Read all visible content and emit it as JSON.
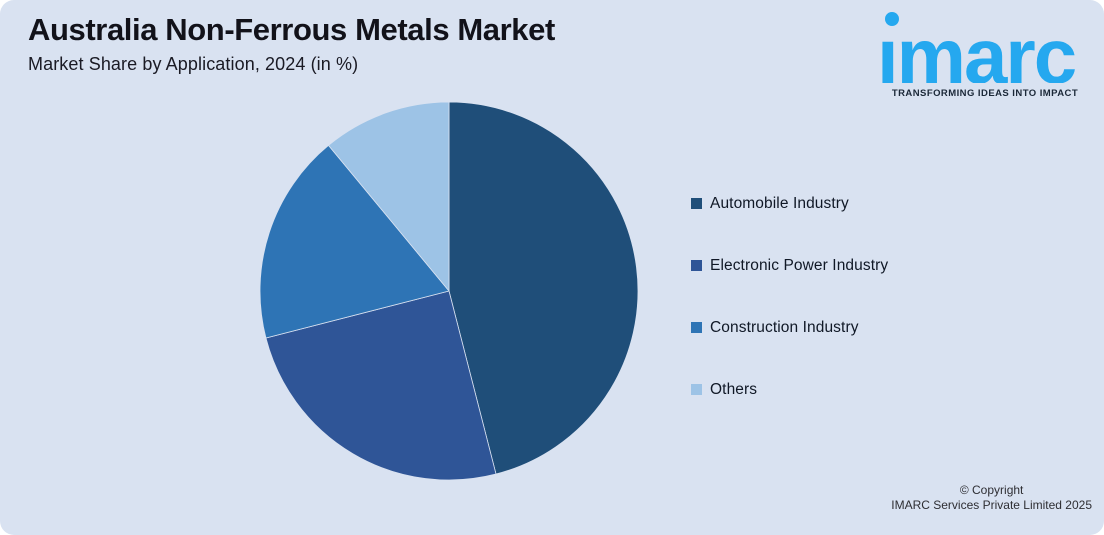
{
  "header": {
    "title": "Australia Non-Ferrous Metals Market",
    "subtitle": "Market Share by Application, 2024 (in %)"
  },
  "brand": {
    "wordmark": "imarc",
    "tagline": "TRANSFORMING IDEAS INTO IMPACT",
    "logo_color": "#25A8EF",
    "tagline_color": "#1B2838"
  },
  "chart_data": {
    "type": "pie",
    "title": "Australia Non-Ferrous Metals Market",
    "subtitle": "Market Share by Application, 2024 (in %)",
    "unit": "%",
    "start_angle_deg": 0,
    "direction": "clockwise",
    "legend_position": "right",
    "slice_border_color": "#D9E2F1",
    "background_color": "#D9E2F1",
    "series": [
      {
        "label": "Automobile Industry",
        "value": 46,
        "color": "#1F4E79"
      },
      {
        "label": "Electronic Power Industry",
        "value": 25,
        "color": "#2F5597"
      },
      {
        "label": "Construction Industry",
        "value": 18,
        "color": "#2E74B5"
      },
      {
        "label": "Others",
        "value": 11,
        "color": "#9DC3E6"
      }
    ]
  },
  "footer": {
    "line1": "© Copyright",
    "line2": "IMARC Services Private Limited 2025"
  }
}
